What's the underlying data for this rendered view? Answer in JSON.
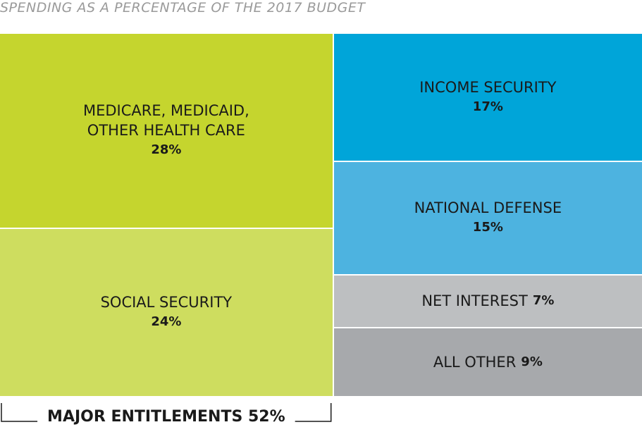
{
  "chart_data": {
    "type": "treemap",
    "title": "SPENDING AS A PERCENTAGE OF THE 2017 BUDGET",
    "groups": [
      {
        "label": "MAJOR ENTITLEMENTS 52%",
        "categories": [
          "MEDICARE, MEDICAID, OTHER HEALTH CARE",
          "SOCIAL SECURITY"
        ],
        "values": [
          28,
          24
        ],
        "value_labels": [
          "28%",
          "24%"
        ],
        "colors": [
          "#c5d52e",
          "#cedd5f"
        ]
      },
      {
        "categories": [
          "INCOME SECURITY",
          "NATIONAL DEFENSE",
          "NET INTEREST",
          "ALL OTHER"
        ],
        "values": [
          17,
          15,
          7,
          9
        ],
        "value_labels": [
          "17%",
          "15%",
          "7%",
          "9%"
        ],
        "colors": [
          "#00a5d9",
          "#4db3e0",
          "#bdbfc1",
          "#a7a9ac"
        ]
      }
    ]
  }
}
